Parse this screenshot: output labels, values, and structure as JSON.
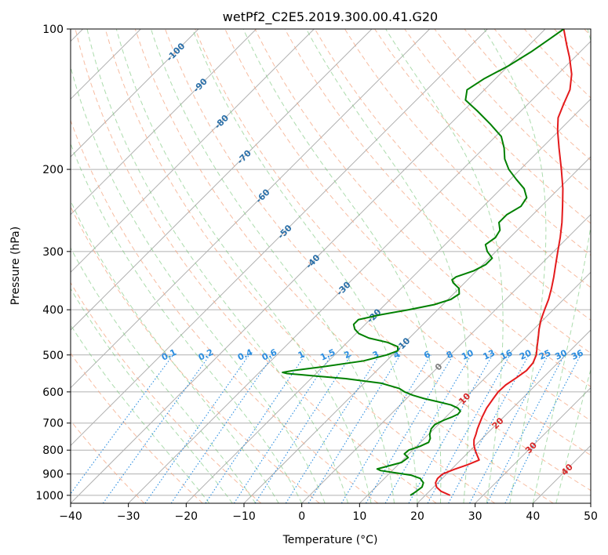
{
  "chart_data": {
    "type": "line",
    "title": "wetPf2_C2E5.2019.300.00.41.G20",
    "xlabel": "Temperature (°C)",
    "ylabel": "Pressure (hPa)",
    "xlim": [
      -40,
      50
    ],
    "ylim": [
      1040,
      100
    ],
    "y_scale": "log",
    "x_ticks": [
      -40,
      -30,
      -20,
      -10,
      0,
      10,
      20,
      30,
      40,
      50
    ],
    "x_tick_labels": [
      "−40",
      "−30",
      "−20",
      "−10",
      "0",
      "10",
      "20",
      "30",
      "40",
      "50"
    ],
    "y_ticks": [
      100,
      200,
      300,
      400,
      500,
      600,
      700,
      800,
      900,
      1000
    ],
    "y_tick_labels": [
      "100",
      "200",
      "300",
      "400",
      "500",
      "600",
      "700",
      "800",
      "900",
      "1000"
    ],
    "grid": true,
    "series": [
      {
        "color": "#e41a1c",
        "points": [
          [
            1000,
            24.3
          ],
          [
            980,
            22.0
          ],
          [
            960,
            20.5
          ],
          [
            940,
            19.6
          ],
          [
            920,
            19.2
          ],
          [
            900,
            19.3
          ],
          [
            880,
            20.5
          ],
          [
            860,
            22.0
          ],
          [
            840,
            23.2
          ],
          [
            820,
            22.0
          ],
          [
            800,
            20.8
          ],
          [
            780,
            19.7
          ],
          [
            760,
            18.8
          ],
          [
            740,
            18.2
          ],
          [
            720,
            17.5
          ],
          [
            700,
            16.9
          ],
          [
            680,
            16.3
          ],
          [
            650,
            15.5
          ],
          [
            620,
            15.0
          ],
          [
            600,
            14.7
          ],
          [
            580,
            14.8
          ],
          [
            560,
            15.4
          ],
          [
            540,
            15.9
          ],
          [
            520,
            15.7
          ],
          [
            500,
            14.9
          ],
          [
            480,
            13.6
          ],
          [
            460,
            12.3
          ],
          [
            440,
            10.9
          ],
          [
            420,
            9.6
          ],
          [
            400,
            8.5
          ],
          [
            380,
            7.4
          ],
          [
            360,
            6.0
          ],
          [
            340,
            4.4
          ],
          [
            320,
            2.6
          ],
          [
            300,
            0.7
          ],
          [
            280,
            -1.3
          ],
          [
            260,
            -3.6
          ],
          [
            240,
            -6.3
          ],
          [
            220,
            -9.3
          ],
          [
            200,
            -12.9
          ],
          [
            180,
            -17.0
          ],
          [
            165,
            -20.3
          ],
          [
            155,
            -22.4
          ],
          [
            145,
            -23.8
          ],
          [
            135,
            -25.2
          ],
          [
            125,
            -27.6
          ],
          [
            115,
            -30.9
          ],
          [
            108,
            -33.6
          ],
          [
            100,
            -36.8
          ]
        ]
      },
      {
        "color": "#008000",
        "points": [
          [
            1000,
            17.4
          ],
          [
            985,
            17.7
          ],
          [
            960,
            18.0
          ],
          [
            940,
            17.5
          ],
          [
            920,
            16.2
          ],
          [
            905,
            14.0
          ],
          [
            895,
            11.0
          ],
          [
            885,
            8.0
          ],
          [
            878,
            7.1
          ],
          [
            870,
            8.0
          ],
          [
            850,
            10.2
          ],
          [
            830,
            10.5
          ],
          [
            815,
            9.2
          ],
          [
            800,
            9.3
          ],
          [
            785,
            10.6
          ],
          [
            770,
            11.4
          ],
          [
            755,
            11.0
          ],
          [
            740,
            10.2
          ],
          [
            720,
            9.5
          ],
          [
            705,
            9.4
          ],
          [
            690,
            10.2
          ],
          [
            680,
            11.0
          ],
          [
            670,
            11.6
          ],
          [
            660,
            11.5
          ],
          [
            650,
            10.5
          ],
          [
            640,
            8.8
          ],
          [
            630,
            6.0
          ],
          [
            620,
            3.0
          ],
          [
            610,
            0.5
          ],
          [
            600,
            -1.5
          ],
          [
            590,
            -3.0
          ],
          [
            575,
            -7.0
          ],
          [
            562,
            -14.0
          ],
          [
            553,
            -21.0
          ],
          [
            548,
            -25.0
          ],
          [
            545,
            -26.0
          ],
          [
            540,
            -24.5
          ],
          [
            530,
            -20.0
          ],
          [
            515,
            -14.0
          ],
          [
            500,
            -11.0
          ],
          [
            490,
            -9.8
          ],
          [
            480,
            -10.5
          ],
          [
            470,
            -13.0
          ],
          [
            460,
            -17.0
          ],
          [
            450,
            -19.5
          ],
          [
            440,
            -21.0
          ],
          [
            430,
            -22.0
          ],
          [
            420,
            -22.0
          ],
          [
            410,
            -19.0
          ],
          [
            400,
            -15.0
          ],
          [
            390,
            -11.5
          ],
          [
            380,
            -9.5
          ],
          [
            370,
            -9.0
          ],
          [
            360,
            -10.0
          ],
          [
            350,
            -12.0
          ],
          [
            345,
            -12.7
          ],
          [
            340,
            -12.5
          ],
          [
            330,
            -10.5
          ],
          [
            320,
            -9.5
          ],
          [
            310,
            -9.5
          ],
          [
            300,
            -11.5
          ],
          [
            290,
            -13.0
          ],
          [
            280,
            -12.5
          ],
          [
            270,
            -13.0
          ],
          [
            260,
            -14.5
          ],
          [
            250,
            -14.5
          ],
          [
            240,
            -13.5
          ],
          [
            230,
            -14.0
          ],
          [
            220,
            -16.0
          ],
          [
            210,
            -19.0
          ],
          [
            200,
            -22.0
          ],
          [
            190,
            -24.5
          ],
          [
            180,
            -26.5
          ],
          [
            170,
            -29.0
          ],
          [
            160,
            -33.0
          ],
          [
            150,
            -37.5
          ],
          [
            142,
            -41.5
          ],
          [
            135,
            -43.0
          ],
          [
            128,
            -42.0
          ],
          [
            120,
            -40.0
          ],
          [
            112,
            -38.5
          ],
          [
            105,
            -37.5
          ],
          [
            100,
            -36.8
          ]
        ]
      }
    ],
    "isotherm_labels": [
      "-100",
      "-90",
      "-80",
      "-70",
      "-60",
      "-50",
      "-40",
      "-30",
      "-20",
      "-10"
    ],
    "mixing_ratio_labels": [
      "0.1",
      "0.2",
      "0.4",
      "0.6",
      "1",
      "1.5",
      "2",
      "3",
      "4",
      "6",
      "8",
      "10",
      "13",
      "16",
      "20",
      "25",
      "30",
      "36"
    ],
    "wet_bulb_labels": [
      "0",
      "10",
      "20",
      "30",
      "40"
    ],
    "colors": {
      "temperature": "#e41a1c",
      "dewpoint": "#008000",
      "dry_adiabats": "#f4a582",
      "moist_adiabats": "#74c476",
      "mixing_ratio": "#2a8de0",
      "isotherm_labels": "#2a6fa8",
      "wet_bulb_labels": "#d62728",
      "grid": "#b0b0b0"
    }
  }
}
